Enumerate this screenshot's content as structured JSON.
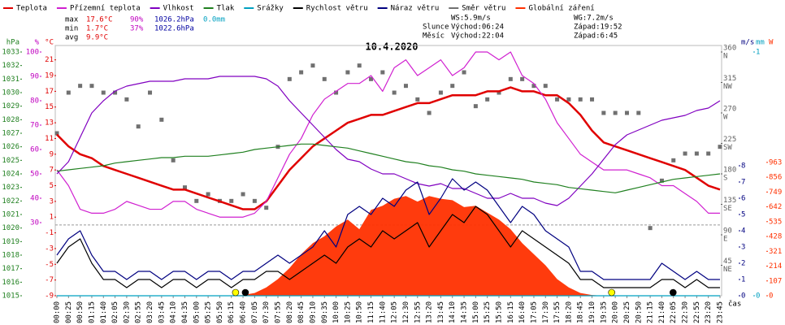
{
  "chart_data": {
    "type": "line",
    "title": "10.4.2020",
    "x_label": "čas",
    "stats": [
      [
        "max",
        "17.6°C",
        "90%",
        "1026.2hPa",
        "0.0mm"
      ],
      [
        "min",
        "1.7°C",
        "37%",
        "1022.6hPa"
      ],
      [
        "avg",
        "9.9°C"
      ]
    ],
    "info": [
      [
        "WS:5.9m/s",
        "WG:7.2m/s"
      ],
      [
        "Slunce",
        "Východ:06:24",
        "Západ:19:52"
      ],
      [
        "Měsíc",
        "Východ:22:04",
        "Západ:6:45"
      ]
    ],
    "categories": [
      "00:00",
      "00:25",
      "00:50",
      "01:15",
      "01:40",
      "02:05",
      "02:30",
      "02:55",
      "03:20",
      "03:45",
      "04:10",
      "04:35",
      "05:00",
      "05:25",
      "05:50",
      "06:15",
      "06:40",
      "07:05",
      "07:30",
      "07:55",
      "08:20",
      "08:45",
      "09:10",
      "09:35",
      "10:00",
      "10:25",
      "10:50",
      "11:15",
      "11:40",
      "12:05",
      "12:30",
      "12:55",
      "13:20",
      "13:45",
      "14:10",
      "14:35",
      "15:00",
      "15:25",
      "15:50",
      "16:15",
      "16:40",
      "17:05",
      "17:30",
      "17:55",
      "18:20",
      "18:45",
      "19:10",
      "19:35",
      "20:00",
      "20:25",
      "20:50",
      "21:15",
      "21:40",
      "22:05",
      "22:30",
      "22:55",
      "23:20",
      "23:45"
    ],
    "axes": [
      {
        "unit": "hPa",
        "side": "left",
        "color": "#208020",
        "lim": [
          1015,
          1033
        ],
        "ticks": [
          1033,
          1032,
          1031,
          1030,
          1029,
          1028,
          1027,
          1026,
          1025,
          1024,
          1023,
          1022,
          1021,
          1020,
          1019,
          1018,
          1017,
          1016,
          1015
        ]
      },
      {
        "unit": "%",
        "side": "left",
        "color": "#c000c0",
        "lim": [
          0,
          100
        ],
        "ticks": [
          100,
          90,
          80,
          70,
          60,
          50,
          40,
          30
        ]
      },
      {
        "unit": "°C",
        "side": "left",
        "color": "#e00000",
        "lim": [
          -9,
          22
        ],
        "ticks": [
          21,
          19,
          17,
          15,
          13,
          11,
          9,
          7,
          5,
          3,
          1,
          -1,
          -3,
          -5,
          -7,
          -9
        ]
      },
      {
        "side": "right",
        "color": "#606060",
        "lim": [
          0,
          360
        ],
        "ticks": [
          360,
          315,
          270,
          225,
          180,
          135,
          90,
          45
        ],
        "compass": [
          "N",
          "NW",
          "W",
          "SW",
          "S",
          "SE",
          "E",
          "NE"
        ]
      },
      {
        "unit": "m/s",
        "side": "right",
        "color": "#000080",
        "lim": [
          0,
          15
        ],
        "ticks": [
          8,
          7,
          6,
          5,
          4,
          3,
          2,
          1,
          0
        ]
      },
      {
        "unit": "mm",
        "side": "right",
        "color": "#00a0c0",
        "lim": [
          0,
          1
        ],
        "ticks": [
          1,
          0
        ]
      },
      {
        "unit": "W",
        "side": "right",
        "color": "#ff3000",
        "lim": [
          0,
          1760
        ],
        "ticks": [
          963,
          856,
          749,
          642,
          535,
          428,
          321,
          214,
          107,
          0
        ]
      }
    ],
    "zero_line": true,
    "series": [
      {
        "name": "Teplota",
        "color": "#e00000",
        "axis": 2,
        "style": "line",
        "values": [
          11.5,
          10,
          9,
          8.5,
          7.5,
          7,
          6.5,
          6,
          5.5,
          5,
          4.5,
          4.5,
          4,
          3.5,
          3,
          2.5,
          2,
          2,
          3,
          5,
          7,
          8.5,
          10,
          11,
          12,
          13,
          13.5,
          14,
          14,
          14.5,
          15,
          15.5,
          15.5,
          16,
          16.5,
          16.5,
          16.5,
          17,
          17,
          17.5,
          17,
          17,
          16.5,
          16.5,
          15.5,
          14,
          12,
          10.5,
          10,
          9.5,
          9,
          8.5,
          8,
          7.5,
          7,
          6,
          5,
          4.5
        ]
      },
      {
        "name": "Přízemní teplota",
        "color": "#d020d0",
        "axis": 2,
        "style": "line",
        "values": [
          7,
          5,
          2,
          1.5,
          1.5,
          2,
          3,
          2.5,
          2,
          2,
          3,
          3,
          2,
          1.5,
          1,
          1,
          1,
          1.5,
          3,
          6,
          9,
          11,
          14,
          16,
          17,
          18,
          18,
          19,
          17,
          20,
          21,
          19,
          20,
          21,
          19,
          20,
          22,
          22,
          21,
          22,
          19,
          18,
          16,
          13,
          11,
          9,
          8,
          7,
          7,
          7,
          6.5,
          6,
          5,
          5,
          4,
          3,
          1.5,
          1.5
        ]
      },
      {
        "name": "Vlhkost",
        "color": "#8000c0",
        "axis": 1,
        "style": "line",
        "values": [
          50,
          55,
          65,
          75,
          80,
          84,
          86,
          87,
          88,
          88,
          88,
          89,
          89,
          89,
          90,
          90,
          90,
          90,
          89,
          86,
          80,
          75,
          70,
          65,
          60,
          56,
          55,
          52,
          50,
          50,
          48,
          46,
          45,
          46,
          44,
          44,
          42,
          40,
          40,
          42,
          40,
          40,
          38,
          37,
          40,
          45,
          50,
          56,
          62,
          66,
          68,
          70,
          72,
          73,
          74,
          76,
          77,
          80
        ]
      },
      {
        "name": "Tlak",
        "color": "#208020",
        "axis": 0,
        "style": "line",
        "values": [
          1024.2,
          1024.3,
          1024.4,
          1024.5,
          1024.6,
          1024.8,
          1024.9,
          1025.0,
          1025.1,
          1025.2,
          1025.2,
          1025.3,
          1025.3,
          1025.3,
          1025.4,
          1025.5,
          1025.6,
          1025.8,
          1025.9,
          1026.0,
          1026.1,
          1026.2,
          1026.2,
          1026.1,
          1026.0,
          1025.9,
          1025.7,
          1025.5,
          1025.3,
          1025.1,
          1024.9,
          1024.8,
          1024.6,
          1024.5,
          1024.3,
          1024.2,
          1024.0,
          1023.9,
          1023.8,
          1023.7,
          1023.6,
          1023.4,
          1023.3,
          1023.2,
          1023.0,
          1022.9,
          1022.8,
          1022.7,
          1022.6,
          1022.8,
          1023.0,
          1023.2,
          1023.4,
          1023.6,
          1023.7,
          1023.8,
          1023.9,
          1024.0
        ]
      },
      {
        "name": "Srážky",
        "color": "#00a0c0",
        "axis": 5,
        "style": "line",
        "values": [
          0,
          0,
          0,
          0,
          0,
          0,
          0,
          0,
          0,
          0,
          0,
          0,
          0,
          0,
          0,
          0,
          0,
          0,
          0,
          0,
          0,
          0,
          0,
          0,
          0,
          0,
          0,
          0,
          0,
          0,
          0,
          0,
          0,
          0,
          0,
          0,
          0,
          0,
          0,
          0,
          0,
          0,
          0,
          0,
          0,
          0,
          0,
          0,
          0,
          0,
          0,
          0,
          0,
          0,
          0,
          0,
          0,
          0
        ]
      },
      {
        "name": "Rychlost větru",
        "color": "#000000",
        "axis": 4,
        "style": "line",
        "values": [
          2,
          3,
          3.5,
          2,
          1,
          1,
          0.5,
          1,
          1,
          0.5,
          1,
          1,
          0.5,
          1,
          1,
          0.5,
          1,
          1,
          1.5,
          1.5,
          1,
          1.5,
          2,
          2.5,
          2,
          3,
          3.5,
          3,
          4,
          3.5,
          4,
          4.5,
          3,
          4,
          5,
          4.5,
          5.5,
          5,
          4,
          3,
          4,
          3.5,
          3,
          2.5,
          2,
          1,
          1,
          0.5,
          0.5,
          0.5,
          0.5,
          0.5,
          1,
          1,
          0.5,
          1,
          0.5,
          0.5
        ]
      },
      {
        "name": "Náraz větru",
        "color": "#000080",
        "axis": 4,
        "style": "line",
        "values": [
          2.5,
          3.5,
          4,
          2.5,
          1.5,
          1.5,
          1,
          1.5,
          1.5,
          1,
          1.5,
          1.5,
          1,
          1.5,
          1.5,
          1,
          1.5,
          1.5,
          2,
          2.5,
          2,
          2.5,
          3,
          4,
          3,
          5,
          5.5,
          5,
          6,
          5.5,
          6.5,
          7,
          5,
          6,
          7.2,
          6.5,
          7,
          6.5,
          5.5,
          4.5,
          5.5,
          5,
          4,
          3.5,
          3,
          1.5,
          1.5,
          1,
          1,
          1,
          1,
          1,
          2,
          1.5,
          1,
          1.5,
          1,
          1
        ]
      },
      {
        "name": "Směr větru",
        "color": "#707070",
        "axis": 3,
        "style": "points",
        "values": [
          240,
          300,
          310,
          310,
          300,
          300,
          290,
          250,
          300,
          260,
          200,
          160,
          140,
          150,
          140,
          140,
          150,
          140,
          130,
          220,
          320,
          330,
          340,
          320,
          300,
          330,
          340,
          320,
          330,
          300,
          310,
          290,
          270,
          300,
          310,
          330,
          280,
          290,
          300,
          320,
          320,
          310,
          310,
          290,
          290,
          290,
          290,
          270,
          270,
          270,
          270,
          100,
          170,
          200,
          210,
          210,
          210,
          220
        ]
      },
      {
        "name": "Globální záření",
        "color": "#ff3000",
        "axis": 6,
        "style": "area",
        "values": [
          0,
          0,
          0,
          0,
          0,
          0,
          0,
          0,
          0,
          0,
          0,
          0,
          0,
          0,
          0,
          0,
          5,
          20,
          60,
          120,
          200,
          300,
          380,
          430,
          500,
          550,
          480,
          620,
          650,
          700,
          720,
          680,
          720,
          700,
          690,
          640,
          650,
          600,
          550,
          480,
          380,
          300,
          220,
          120,
          60,
          20,
          5,
          0,
          0,
          0,
          0,
          0,
          0,
          0,
          0,
          0,
          0,
          0
        ]
      }
    ],
    "events": [
      {
        "hours": 6.4,
        "color": "#ffff00"
      },
      {
        "hours": 19.87,
        "color": "#ffff00"
      },
      {
        "hours": 6.75,
        "color": "#000000"
      },
      {
        "hours": 22.07,
        "color": "#000000"
      }
    ]
  }
}
